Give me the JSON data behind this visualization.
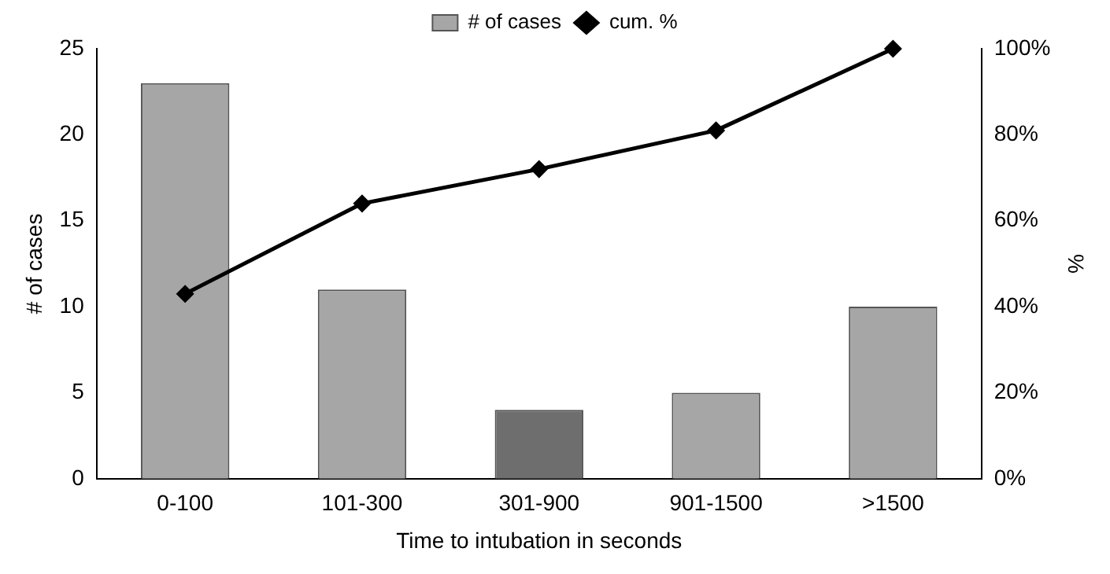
{
  "chart_data": {
    "type": "bar",
    "xlabel": "Time to intubation in seconds",
    "ylabel": "# of cases",
    "y2label": "%",
    "categories": [
      "0-100",
      "101-300",
      "301-900",
      "901-1500",
      ">1500"
    ],
    "series": [
      {
        "name": "# of cases",
        "colors": [
          "#a6a6a6",
          "#a6a6a6",
          "#6e6e6e",
          "#a6a6a6",
          "#a6a6a6"
        ],
        "color": "#a6a6a6",
        "values": [
          23,
          11,
          4,
          5,
          10
        ]
      },
      {
        "name": "cum. %",
        "type": "line",
        "axis": "y2",
        "color": "#000000",
        "marker": "diamond",
        "values": [
          43,
          64,
          72,
          81,
          100
        ]
      }
    ],
    "ylim": [
      0,
      25
    ],
    "yticks": [
      0,
      5,
      10,
      15,
      20,
      25
    ],
    "y2lim": [
      0,
      100
    ],
    "y2ticks": [
      {
        "value": 0,
        "label": "0%"
      },
      {
        "value": 20,
        "label": "20%"
      },
      {
        "value": 40,
        "label": "40%"
      },
      {
        "value": 60,
        "label": "60%"
      },
      {
        "value": 80,
        "label": "80%"
      },
      {
        "value": 100,
        "label": "100%"
      }
    ],
    "legend": "top",
    "grid": false
  }
}
